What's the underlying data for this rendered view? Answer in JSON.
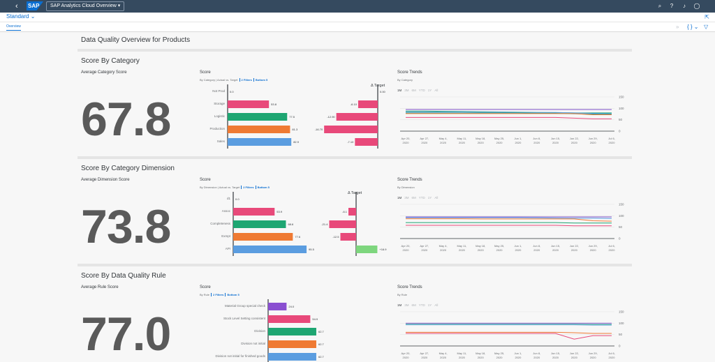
{
  "shell": {
    "back_icon": "chevron-left-icon",
    "logo": "SAP",
    "app_title": "SAP Analytics Cloud Overview ▾",
    "icons": [
      "search-icon",
      "help-icon",
      "bell-icon",
      "user-icon"
    ]
  },
  "variant": {
    "label": "Standard"
  },
  "tabs": {
    "overview": "Overview"
  },
  "page_title": "Data Quality Overview for Products",
  "sections": [
    {
      "title": "Score By Category",
      "kpi_label": "Average Category Score",
      "kpi_value": "67.8",
      "score_title": "Score",
      "score_sub": "By Category | Actual vs. Target",
      "filters": "2 Filters",
      "bottom": "Bottom 5",
      "delta_title": "Δ Target",
      "trend_title": "Score Trends",
      "trend_sub": "By Category"
    },
    {
      "title": "Score By Category Dimension",
      "kpi_label": "Average Dimension Score",
      "kpi_value": "73.8",
      "score_title": "Score",
      "score_sub": "By Dimension | Actual vs. Target",
      "filters": "2 Filters",
      "bottom": "Bottom 5",
      "delta_title": "Δ Target",
      "trend_title": "Score Trends",
      "trend_sub": "By Dimension"
    },
    {
      "title": "Score By Data Quality Rule",
      "kpi_label": "Average Rule Score",
      "kpi_value": "77.0",
      "score_title": "Score",
      "score_sub": "By Rule",
      "filters": "2 Filters",
      "bottom": "Bottom 5",
      "delta_title": "",
      "trend_title": "Score Trends",
      "trend_sub": "By Rule"
    }
  ],
  "time_filters": [
    "1M",
    "3M",
    "6M",
    "YTD",
    "1Y",
    "All"
  ],
  "chart_data": [
    {
      "type": "bar",
      "categories": [
        "Not Prod",
        "Storage",
        "Logistic",
        "Production",
        "Sales"
      ],
      "values": [
        0.0,
        53.8,
        77.5,
        81.3,
        82.9
      ],
      "labels": [
        "0.0",
        "53.8",
        "77.5",
        "81.3",
        "82.9"
      ],
      "colors": [
        "#e8497a",
        "#e8497a",
        "#1ea672",
        "#ef7a33",
        "#5b9de0"
      ],
      "xlim": [
        0,
        100
      ]
    },
    {
      "type": "bar",
      "categories": [
        "",
        "",
        "",
        "",
        ""
      ],
      "values": [
        0.0,
        -6.1,
        -12.9,
        -16.7,
        -7.1
      ],
      "labels": [
        "0.00",
        "-6.10",
        "-12.90",
        "-16.70",
        "-7.10"
      ],
      "colors": [
        "#e8497a",
        "#e8497a",
        "#e8497a",
        "#e8497a",
        "#e8497a"
      ],
      "xlim": [
        -20,
        0
      ]
    },
    {
      "type": "line",
      "x": [
        "Apr 20, 2020",
        "Apr 27, 2020",
        "May 4, 2020",
        "May 11, 2020",
        "May 18, 2020",
        "May 25, 2020",
        "Jun 1, 2020",
        "Jun 8, 2020",
        "Jun 15, 2020",
        "Jun 22, 2020",
        "Jun 29, 2020",
        "Jul 6, 2020"
      ],
      "ylim": [
        0,
        150
      ],
      "yticks": [
        "0",
        "50",
        "100",
        "150"
      ],
      "series": [
        {
          "color": "#7c4fc7",
          "values": [
            95,
            95,
            95,
            95,
            95,
            95,
            95,
            95,
            95,
            95,
            95,
            95
          ]
        },
        {
          "color": "#1ea672",
          "values": [
            88,
            88,
            87,
            86,
            85,
            84,
            83,
            82,
            81,
            80,
            80,
            80
          ]
        },
        {
          "color": "#5b9de0",
          "values": [
            84,
            84,
            84,
            84,
            83,
            83,
            82,
            82,
            82,
            80,
            78,
            76
          ]
        },
        {
          "color": "#2a9d8f",
          "values": [
            80,
            80,
            80,
            80,
            80,
            80,
            80,
            79,
            78,
            76,
            75,
            74
          ]
        },
        {
          "color": "#ef7a33",
          "values": [
            77,
            77,
            77,
            77,
            77,
            77,
            77,
            77,
            77,
            77,
            72,
            72
          ]
        },
        {
          "color": "#e8497a",
          "values": [
            60,
            60,
            60,
            60,
            60,
            60,
            60,
            60,
            60,
            57,
            54,
            54
          ]
        }
      ]
    },
    {
      "type": "bar",
      "categories": [
        "d1",
        "Assoc",
        "Completeness",
        "Exmpt",
        "API"
      ],
      "values": [
        0.0,
        53.9,
        68.6,
        77.6,
        95.5
      ],
      "labels": [
        "0.0",
        "53.9",
        "68.6",
        "77.6",
        "95.5"
      ],
      "colors": [
        "#e8497a",
        "#e8497a",
        "#1ea672",
        "#ef7a33",
        "#5b9de0"
      ],
      "xlim": [
        0,
        100
      ]
    },
    {
      "type": "bar",
      "categories": [
        "",
        "",
        "",
        "",
        ""
      ],
      "values": [
        0,
        -6.1,
        -21.4,
        -12.5,
        16.9
      ],
      "labels": [
        "",
        "-6.1",
        "-21.4",
        "-12.5",
        "+16.9"
      ],
      "colors": [
        "#e8497a",
        "#e8497a",
        "#e8497a",
        "#e8497a",
        "#7ed67e"
      ],
      "xlim": [
        -25,
        20
      ]
    },
    {
      "type": "line",
      "x": [
        "Apr 20, 2020",
        "Apr 27, 2020",
        "May 4, 2020",
        "May 11, 2020",
        "May 18, 2020",
        "May 25, 2020",
        "Jun 1, 2020",
        "Jun 8, 2020",
        "Jun 15, 2020",
        "Jun 22, 2020",
        "Jun 29, 2020",
        "Jul 6, 2020"
      ],
      "ylim": [
        0,
        150
      ],
      "yticks": [
        "0",
        "50",
        "100",
        "150"
      ],
      "series": [
        {
          "color": "#7c4fc7",
          "values": [
            95,
            95,
            95,
            95,
            95,
            95,
            95,
            95,
            95,
            95,
            95,
            95
          ]
        },
        {
          "color": "#5b9de0",
          "values": [
            92,
            92,
            92,
            92,
            92,
            92,
            92,
            91,
            90,
            89,
            89,
            88
          ]
        },
        {
          "color": "#ef7a33",
          "values": [
            87,
            87,
            87,
            87,
            86,
            86,
            86,
            86,
            86,
            86,
            78,
            76
          ]
        },
        {
          "color": "#1ea672",
          "values": [
            70,
            70,
            70,
            70,
            70,
            70,
            70,
            70,
            70,
            68,
            68,
            68
          ]
        },
        {
          "color": "#e8497a",
          "values": [
            58,
            58,
            58,
            58,
            58,
            58,
            58,
            58,
            58,
            56,
            56,
            56
          ]
        }
      ]
    },
    {
      "type": "bar",
      "categories": [
        "Material Group special check",
        "Stock Level Setting consistent",
        "Division",
        "Division not initial",
        "Division not initial for finished goods"
      ],
      "values": [
        24.0,
        54.9,
        62.7,
        62.7,
        62.7
      ],
      "labels": [
        "24.0",
        "54.9",
        "62.7",
        "62.7",
        "62.7"
      ],
      "colors": [
        "#8a4fd1",
        "#e8497a",
        "#1ea672",
        "#ef7a33",
        "#5b9de0"
      ],
      "xlim": [
        0,
        100
      ]
    },
    {
      "type": "line",
      "x": [
        "Apr 20, 2020",
        "Apr 27, 2020",
        "May 4, 2020",
        "May 11, 2020",
        "May 18, 2020",
        "May 25, 2020",
        "Jun 1, 2020",
        "Jun 8, 2020",
        "Jun 15, 2020",
        "Jun 22, 2020",
        "Jun 29, 2020",
        "Jul 6, 2020"
      ],
      "ylim": [
        0,
        150
      ],
      "yticks": [
        "0",
        "50",
        "100",
        "150"
      ],
      "series": [
        {
          "color": "#7c4fc7",
          "values": [
            100,
            100,
            100,
            100,
            100,
            100,
            100,
            100,
            100,
            100,
            100,
            100
          ]
        },
        {
          "color": "#1ea672",
          "values": [
            95,
            95,
            95,
            95,
            95,
            95,
            95,
            95,
            95,
            95,
            94,
            94
          ]
        },
        {
          "color": "#5b9de0",
          "values": [
            93,
            93,
            93,
            93,
            93,
            93,
            93,
            93,
            93,
            93,
            92,
            92
          ]
        },
        {
          "color": "#ef7a33",
          "values": [
            60,
            60,
            60,
            60,
            60,
            60,
            60,
            60,
            60,
            58,
            55,
            55
          ]
        },
        {
          "color": "#e8497a",
          "values": [
            55,
            55,
            55,
            55,
            55,
            55,
            55,
            55,
            55,
            30,
            45,
            45
          ]
        }
      ]
    }
  ]
}
